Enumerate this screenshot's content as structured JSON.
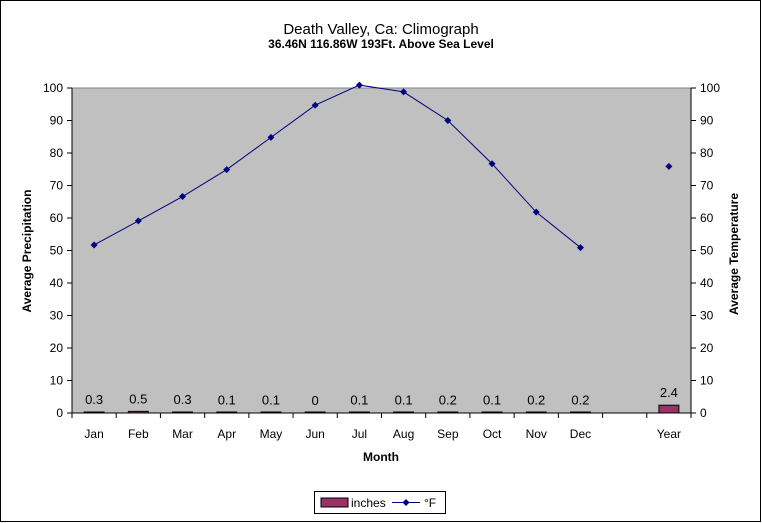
{
  "chart_data": {
    "type": "bar+line",
    "title": "Death Valley, Ca: Climograph",
    "subtitle": "36.46N 116.86W 193Ft. Above Sea Level",
    "xlabel": "Month",
    "ylabel_left": "Average Precipitation",
    "ylabel_right": "Average Temperature",
    "categories": [
      "Jan",
      "Feb",
      "Mar",
      "Apr",
      "May",
      "Jun",
      "Jul",
      "Aug",
      "Sep",
      "Oct",
      "Nov",
      "Dec",
      "",
      "Year"
    ],
    "ylim": [
      0,
      100
    ],
    "yticks": [
      0,
      10,
      20,
      30,
      40,
      50,
      60,
      70,
      80,
      90,
      100
    ],
    "grid": false,
    "legend_position": "bottom",
    "series": [
      {
        "name": "inches",
        "kind": "bar",
        "axis": "left",
        "color": "#993366",
        "values": [
          0.3,
          0.5,
          0.3,
          0.1,
          0.1,
          0,
          0.1,
          0.1,
          0.2,
          0.1,
          0.2,
          0.2,
          null,
          2.4
        ],
        "labels": [
          "0.3",
          "0.5",
          "0.3",
          "0.1",
          "0.1",
          "0",
          "0.1",
          "0.1",
          "0.2",
          "0.1",
          "0.2",
          "0.2",
          "",
          "2.4"
        ]
      },
      {
        "name": "°F",
        "kind": "line",
        "axis": "right",
        "color": "#000080",
        "values": [
          51.7,
          59.1,
          66.6,
          74.9,
          84.8,
          94.7,
          100.9,
          98.8,
          90.0,
          76.7,
          61.8,
          50.9,
          null,
          75.9
        ]
      }
    ]
  }
}
